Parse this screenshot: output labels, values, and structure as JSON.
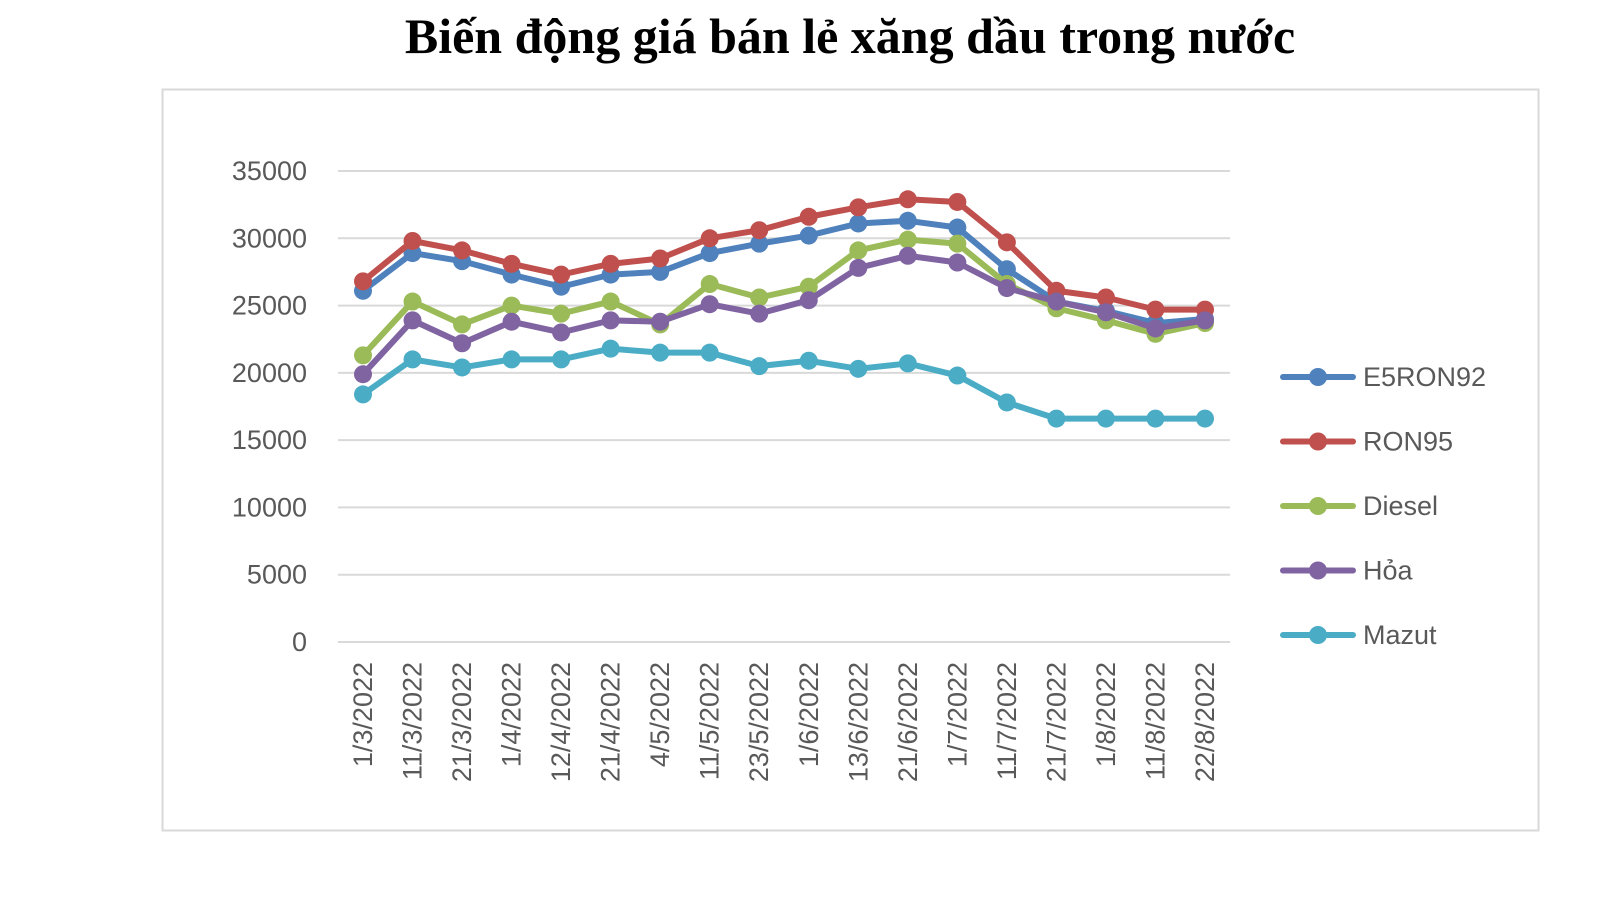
{
  "chart_data": {
    "type": "line",
    "title": "Biến động giá bán lẻ xăng dầu trong nước",
    "categories": [
      "1/3/2022",
      "11/3/2022",
      "21/3/2022",
      "1/4/2022",
      "12/4/2022",
      "21/4/2022",
      "4/5/2022",
      "11/5/2022",
      "23/5/2022",
      "1/6/2022",
      "13/6/2022",
      "21/6/2022",
      "1/7/2022",
      "11/7/2022",
      "21/7/2022",
      "1/8/2022",
      "11/8/2022",
      "22/8/2022"
    ],
    "ylim": [
      0,
      35000
    ],
    "yticks": [
      0,
      5000,
      10000,
      15000,
      20000,
      25000,
      30000,
      35000
    ],
    "grid": "horizontal",
    "legend_position": "right",
    "marker": "circle",
    "series": [
      {
        "name": "E5RON92",
        "color": "#4F81BD",
        "values": [
          26100,
          28900,
          28300,
          27300,
          26400,
          27300,
          27500,
          28900,
          29600,
          30200,
          31100,
          31300,
          30800,
          27700,
          25300,
          24600,
          23700,
          24000
        ]
      },
      {
        "name": "RON95",
        "color": "#C0504D",
        "values": [
          26800,
          29800,
          29100,
          28100,
          27300,
          28100,
          28500,
          30000,
          30600,
          31600,
          32300,
          32900,
          32700,
          29700,
          26100,
          25600,
          24700,
          24700
        ]
      },
      {
        "name": "Diesel",
        "color": "#9BBB59",
        "values": [
          21300,
          25300,
          23600,
          25000,
          24400,
          25300,
          23600,
          26600,
          25600,
          26400,
          29100,
          29900,
          29600,
          26600,
          24800,
          23900,
          22900,
          23700
        ]
      },
      {
        "name": "Hỏa",
        "color": "#8064A2",
        "values": [
          19900,
          23900,
          22200,
          23800,
          23000,
          23900,
          23800,
          25100,
          24400,
          25400,
          27800,
          28700,
          28200,
          26300,
          25300,
          24500,
          23300,
          23900
        ]
      },
      {
        "name": "Mazut",
        "color": "#4BACC6",
        "values": [
          18400,
          21000,
          20400,
          21000,
          21000,
          21800,
          21500,
          21500,
          20500,
          20900,
          20300,
          20700,
          19800,
          17800,
          16600,
          16600,
          16600,
          16600
        ]
      }
    ]
  }
}
